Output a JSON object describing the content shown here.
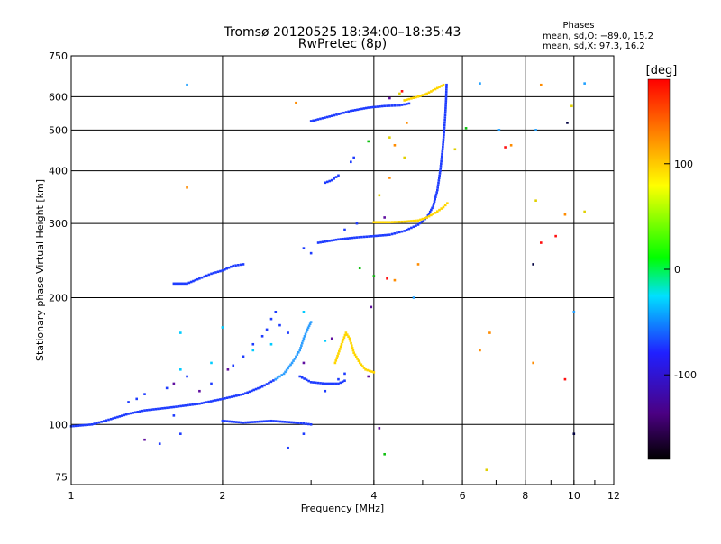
{
  "chart_data": {
    "type": "scatter",
    "title": "Tromsø 20120525 18:34:00–18:35:43",
    "subtitle": "RwPretec (8p)",
    "xlabel": "Frequency [MHz]",
    "ylabel": "Stationary phase Virtual Height [km]",
    "x_scale": "log",
    "y_scale": "log",
    "xlim": [
      1,
      12
    ],
    "ylim": [
      72,
      750
    ],
    "x_ticks": [
      1,
      2,
      4,
      6,
      8,
      10,
      12
    ],
    "y_ticks": [
      75,
      100,
      200,
      300,
      400,
      500,
      600,
      750
    ],
    "grid": true,
    "phases_box": {
      "title": "Phases",
      "line1": "mean, sd,O: −89.0, 15.2",
      "line2": "mean, sd,X:  97.3, 16.2"
    },
    "colorbar": {
      "label": "[deg]",
      "range": [
        -180,
        180
      ],
      "ticks": [
        100,
        0,
        -100
      ],
      "colors": [
        "#000000",
        "#4b0082",
        "#2020ff",
        "#00ffff",
        "#00ff00",
        "#ffff00",
        "#ff8000",
        "#ff0000"
      ]
    },
    "series": [
      {
        "type": "trace",
        "color": "#1e3cff",
        "points": [
          [
            1.0,
            99
          ],
          [
            1.1,
            100
          ],
          [
            1.2,
            103
          ],
          [
            1.3,
            106
          ],
          [
            1.4,
            108
          ],
          [
            1.6,
            110
          ],
          [
            1.8,
            112
          ],
          [
            2.0,
            115
          ],
          [
            2.2,
            118
          ],
          [
            2.4,
            123
          ],
          [
            2.55,
            128
          ]
        ]
      },
      {
        "type": "trace",
        "color": "#30a0ff",
        "points": [
          [
            2.55,
            128
          ],
          [
            2.65,
            132
          ],
          [
            2.75,
            140
          ],
          [
            2.85,
            150
          ],
          [
            2.9,
            160
          ],
          [
            2.95,
            168
          ],
          [
            3.0,
            175
          ]
        ]
      },
      {
        "type": "trace",
        "color": "#1e3cff",
        "points": [
          [
            2.85,
            130
          ],
          [
            3.0,
            126
          ],
          [
            3.2,
            125
          ],
          [
            3.4,
            125
          ],
          [
            3.5,
            127
          ]
        ]
      },
      {
        "type": "trace",
        "color": "#ffd600",
        "points": [
          [
            3.35,
            140
          ],
          [
            3.45,
            155
          ],
          [
            3.52,
            165
          ],
          [
            3.58,
            160
          ],
          [
            3.65,
            148
          ],
          [
            3.75,
            140
          ],
          [
            3.85,
            135
          ],
          [
            4.0,
            133
          ]
        ]
      },
      {
        "type": "trace",
        "color": "#1e3cff",
        "points": [
          [
            3.1,
            270
          ],
          [
            3.4,
            275
          ],
          [
            3.7,
            278
          ],
          [
            4.0,
            280
          ],
          [
            4.3,
            282
          ],
          [
            4.6,
            288
          ],
          [
            4.9,
            298
          ],
          [
            5.1,
            310
          ],
          [
            5.25,
            330
          ],
          [
            5.35,
            360
          ],
          [
            5.42,
            400
          ],
          [
            5.48,
            450
          ],
          [
            5.52,
            500
          ],
          [
            5.55,
            550
          ],
          [
            5.57,
            600
          ],
          [
            5.58,
            640
          ]
        ]
      },
      {
        "type": "trace",
        "color": "#ffd600",
        "points": [
          [
            4.0,
            302
          ],
          [
            4.3,
            302
          ],
          [
            4.6,
            303
          ],
          [
            4.9,
            305
          ],
          [
            5.1,
            310
          ],
          [
            5.3,
            318
          ],
          [
            5.5,
            328
          ],
          [
            5.6,
            335
          ]
        ]
      },
      {
        "type": "trace",
        "color": "#1e3cff",
        "points": [
          [
            3.0,
            525
          ],
          [
            3.3,
            540
          ],
          [
            3.6,
            555
          ],
          [
            3.9,
            565
          ],
          [
            4.2,
            570
          ],
          [
            4.5,
            572
          ],
          [
            4.7,
            578
          ]
        ]
      },
      {
        "type": "trace",
        "color": "#ffd600",
        "points": [
          [
            4.6,
            588
          ],
          [
            4.9,
            600
          ],
          [
            5.1,
            610
          ],
          [
            5.3,
            625
          ],
          [
            5.5,
            640
          ]
        ]
      },
      {
        "type": "trace",
        "color": "#1e3cff",
        "points": [
          [
            1.6,
            216
          ],
          [
            1.7,
            216
          ],
          [
            1.8,
            222
          ],
          [
            1.9,
            228
          ],
          [
            2.0,
            232
          ],
          [
            2.1,
            238
          ],
          [
            2.2,
            240
          ]
        ]
      },
      {
        "type": "trace",
        "color": "#1e3cff",
        "points": [
          [
            2.0,
            102
          ],
          [
            2.2,
            101
          ],
          [
            2.5,
            102
          ],
          [
            2.8,
            101
          ],
          [
            3.0,
            100
          ]
        ]
      },
      {
        "type": "trace",
        "color": "#1e3cff",
        "points": [
          [
            3.2,
            375
          ],
          [
            3.3,
            380
          ],
          [
            3.4,
            390
          ]
        ]
      },
      {
        "type": "scatter",
        "color": "#1e3cff",
        "points": [
          [
            1.3,
            113
          ],
          [
            1.35,
            115
          ],
          [
            1.4,
            118
          ],
          [
            1.55,
            122
          ],
          [
            1.7,
            130
          ],
          [
            1.9,
            125
          ],
          [
            2.1,
            138
          ],
          [
            2.2,
            145
          ],
          [
            2.3,
            155
          ],
          [
            2.4,
            162
          ],
          [
            2.45,
            168
          ],
          [
            2.5,
            178
          ],
          [
            2.55,
            185
          ],
          [
            2.6,
            172
          ],
          [
            2.7,
            165
          ],
          [
            3.2,
            120
          ],
          [
            3.4,
            128
          ],
          [
            3.5,
            132
          ],
          [
            2.9,
            262
          ],
          [
            3.5,
            290
          ],
          [
            3.7,
            300
          ],
          [
            3.0,
            255
          ],
          [
            3.6,
            420
          ],
          [
            3.65,
            430
          ],
          [
            1.6,
            105
          ],
          [
            1.5,
            90
          ],
          [
            1.65,
            95
          ],
          [
            2.9,
            95
          ],
          [
            2.7,
            88
          ]
        ]
      },
      {
        "type": "scatter",
        "color": "#00ccff",
        "points": [
          [
            2.0,
            170
          ],
          [
            2.3,
            150
          ],
          [
            2.5,
            155
          ],
          [
            2.9,
            185
          ],
          [
            3.2,
            158
          ],
          [
            1.65,
            165
          ],
          [
            1.65,
            135
          ],
          [
            1.9,
            140
          ]
        ]
      },
      {
        "type": "scatter",
        "color": "#6010a0",
        "points": [
          [
            1.4,
            92
          ],
          [
            1.6,
            125
          ],
          [
            1.8,
            120
          ],
          [
            2.05,
            135
          ],
          [
            2.9,
            140
          ],
          [
            3.9,
            130
          ],
          [
            3.95,
            190
          ],
          [
            4.1,
            98
          ],
          [
            3.3,
            160
          ],
          [
            4.2,
            310
          ],
          [
            4.3,
            595
          ]
        ]
      },
      {
        "type": "scatter",
        "color": "#ff8c00",
        "points": [
          [
            1.7,
            365
          ],
          [
            2.8,
            580
          ],
          [
            4.3,
            385
          ],
          [
            4.4,
            460
          ],
          [
            4.65,
            520
          ],
          [
            4.9,
            240
          ],
          [
            6.8,
            165
          ],
          [
            7.5,
            460
          ],
          [
            8.3,
            140
          ],
          [
            8.6,
            640
          ],
          [
            9.6,
            315
          ],
          [
            4.4,
            220
          ],
          [
            6.5,
            150
          ]
        ]
      },
      {
        "type": "scatter",
        "color": "#e0d000",
        "points": [
          [
            4.1,
            350
          ],
          [
            4.3,
            480
          ],
          [
            4.6,
            430
          ],
          [
            4.5,
            610
          ],
          [
            5.8,
            450
          ],
          [
            6.7,
            78
          ],
          [
            9.9,
            570
          ],
          [
            10.5,
            320
          ],
          [
            8.4,
            340
          ]
        ]
      },
      {
        "type": "scatter",
        "color": "#10c010",
        "points": [
          [
            3.9,
            470
          ],
          [
            4.0,
            225
          ],
          [
            3.75,
            235
          ],
          [
            4.2,
            85
          ],
          [
            6.1,
            505
          ]
        ]
      },
      {
        "type": "scatter",
        "color": "#ff1010",
        "points": [
          [
            4.55,
            618
          ],
          [
            7.3,
            455
          ],
          [
            8.6,
            270
          ],
          [
            9.6,
            128
          ],
          [
            9.2,
            280
          ],
          [
            4.25,
            222
          ]
        ]
      },
      {
        "type": "scatter",
        "color": "#20a0ff",
        "points": [
          [
            1.7,
            640
          ],
          [
            6.5,
            645
          ],
          [
            10.5,
            645
          ],
          [
            7.1,
            500
          ],
          [
            10.0,
            185
          ],
          [
            4.8,
            200
          ],
          [
            8.4,
            500
          ]
        ]
      },
      {
        "type": "scatter",
        "color": "#000040",
        "points": [
          [
            8.3,
            240
          ],
          [
            9.7,
            520
          ],
          [
            10.0,
            95
          ]
        ]
      }
    ]
  }
}
